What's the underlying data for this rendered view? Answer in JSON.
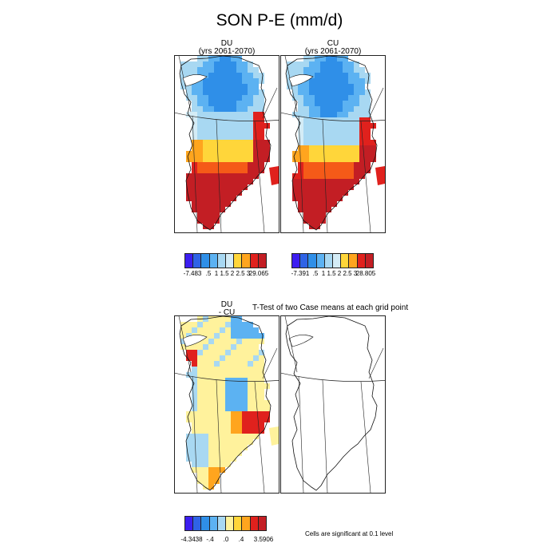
{
  "title": "SON P-E (mm/d)",
  "palette": {
    "c0": "#3c1ef0",
    "c1": "#2f63e6",
    "c2": "#2f8fe8",
    "c3": "#5cb2f2",
    "c4": "#a8d8f2",
    "c5": "#d4ecf6",
    "c6": "#fff29c",
    "c7": "#ffd63a",
    "c8": "#ffa51e",
    "c9": "#f55a18",
    "c10": "#e0211d",
    "c11": "#c31e24"
  },
  "panels": {
    "du": {
      "name": "DU",
      "subtitle": "(yrs 2061-2070)"
    },
    "cu": {
      "name": "CU",
      "subtitle": "(yrs 2061-2070)"
    },
    "diff": {
      "name_line1": "DU",
      "name_line2": "- CU"
    },
    "ttest": {
      "title": "T-Test of two Case means at each grid point"
    }
  },
  "colorbars": {
    "du": {
      "labels": [
        "-7.483",
        ".5",
        "1",
        "1.5",
        "2",
        "2.5",
        "3",
        "29.065"
      ]
    },
    "cu": {
      "labels": [
        "-7.391",
        ".5",
        "1",
        "1.5",
        "2",
        "2.5",
        "3",
        "28.805"
      ]
    },
    "diff": {
      "labels": [
        "-4.3438",
        "-.4",
        ".0",
        ".4",
        "3.5906"
      ]
    }
  },
  "note": "Cells are significant at 0.1 level"
}
